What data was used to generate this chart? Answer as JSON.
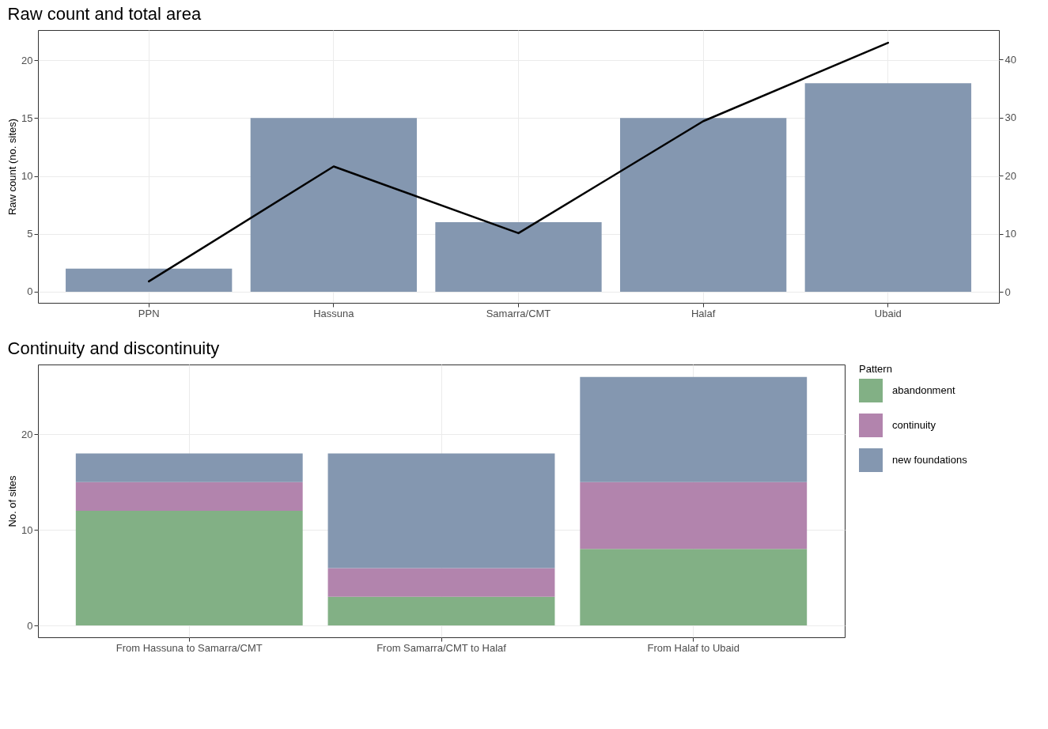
{
  "chart_data": [
    {
      "type": "bar",
      "title": "Raw count and total area",
      "ylabel": "Raw count (no. sites)",
      "categories": [
        "PPN",
        "Hassuna",
        "Samarra/CMT",
        "Halaf",
        "Ubaid"
      ],
      "series": [
        {
          "color": "#8497b0",
          "values": [
            2,
            15,
            6,
            15,
            18
          ]
        },
        {
          "type": "line",
          "axis": "y2",
          "color": "#000000",
          "values": [
            1.8,
            21.6,
            10.1,
            29.4,
            42.9
          ]
        }
      ],
      "ylim": [
        -0.96,
        22.6
      ],
      "yticks": [
        0,
        5,
        10,
        15,
        20
      ],
      "y2lim": [
        -1.9,
        45.1
      ],
      "y2ticks": [
        0,
        10,
        20,
        30,
        40
      ],
      "grid": true
    },
    {
      "type": "bar",
      "stacked": true,
      "title": "Continuity and discontinuity",
      "ylabel": "No. of sites",
      "legend_title": "Pattern",
      "legend": "right",
      "categories": [
        "From Hassuna to Samarra/CMT",
        "From Samarra/CMT to Halaf",
        "From Halaf to Ubaid"
      ],
      "series": [
        {
          "name": "abandonment",
          "color": "#82b085",
          "values": [
            12,
            3,
            8
          ]
        },
        {
          "name": "continuity",
          "color": "#b284ad",
          "values": [
            3,
            3,
            7
          ]
        },
        {
          "name": "new foundations",
          "color": "#8497b0",
          "values": [
            3,
            12,
            11
          ]
        }
      ],
      "ylim": [
        -1.24,
        27.3
      ],
      "yticks": [
        0,
        10,
        20
      ],
      "grid": true
    }
  ]
}
